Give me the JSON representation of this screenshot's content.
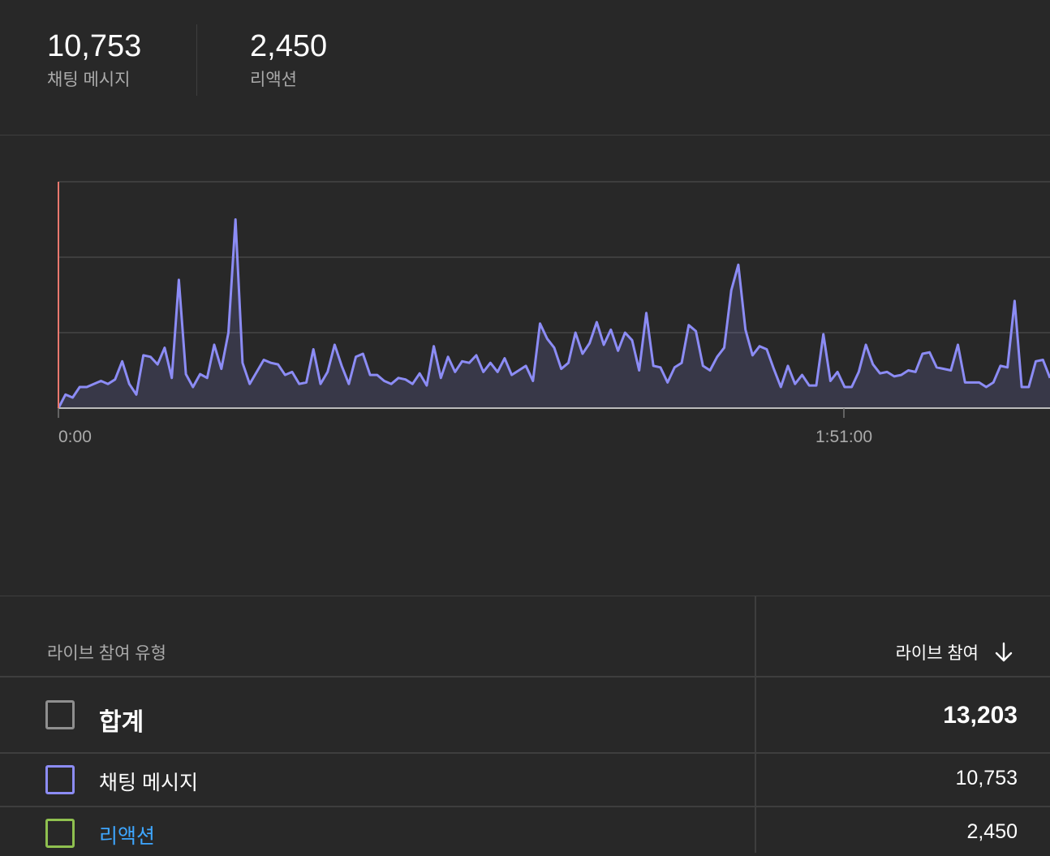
{
  "metrics": [
    {
      "value": "10,753",
      "label": "채팅 메시지"
    },
    {
      "value": "2,450",
      "label": "리액션"
    }
  ],
  "chart_data": {
    "type": "area",
    "x_tick_labels": [
      "0:00",
      "1:51:00"
    ],
    "series_color": "#8c8cf5",
    "baseline_marker_color": "#e9786e",
    "grid": true,
    "values": [
      0,
      18,
      14,
      28,
      28,
      32,
      36,
      32,
      38,
      62,
      32,
      18,
      70,
      68,
      58,
      80,
      40,
      170,
      45,
      28,
      45,
      40,
      84,
      52,
      100,
      250,
      60,
      32,
      48,
      64,
      60,
      58,
      44,
      48,
      32,
      34,
      78,
      32,
      48,
      84,
      56,
      32,
      68,
      72,
      44,
      44,
      36,
      32,
      40,
      38,
      32,
      46,
      30,
      82,
      40,
      68,
      48,
      62,
      60,
      70,
      48,
      60,
      48,
      66,
      44,
      50,
      56,
      36,
      112,
      92,
      80,
      52,
      60,
      100,
      72,
      86,
      114,
      84,
      104,
      76,
      100,
      90,
      50,
      126,
      56,
      54,
      34,
      54,
      60,
      110,
      102,
      56,
      50,
      68,
      80,
      156,
      190,
      104,
      70,
      82,
      78,
      52,
      28,
      56,
      32,
      44,
      30,
      30,
      98,
      36,
      48,
      28,
      28,
      48,
      84,
      58,
      46,
      48,
      42,
      44,
      50,
      48,
      72,
      74,
      54,
      52,
      50,
      84,
      34,
      34,
      34,
      28,
      34,
      56,
      54,
      142,
      28,
      28,
      62,
      64,
      40
    ]
  },
  "table": {
    "header_type": "라이브 참여 유형",
    "header_value": "라이브 참여",
    "rows": [
      {
        "name": "합계",
        "value": "13,203",
        "checkbox_color": "#8f8f8f",
        "total": true
      },
      {
        "name": "채팅 메시지",
        "value": "10,753",
        "checkbox_color": "#8c8cf5"
      },
      {
        "name": "리액션",
        "value": "2,450",
        "checkbox_color": "#8fc04f",
        "link": true
      }
    ]
  }
}
